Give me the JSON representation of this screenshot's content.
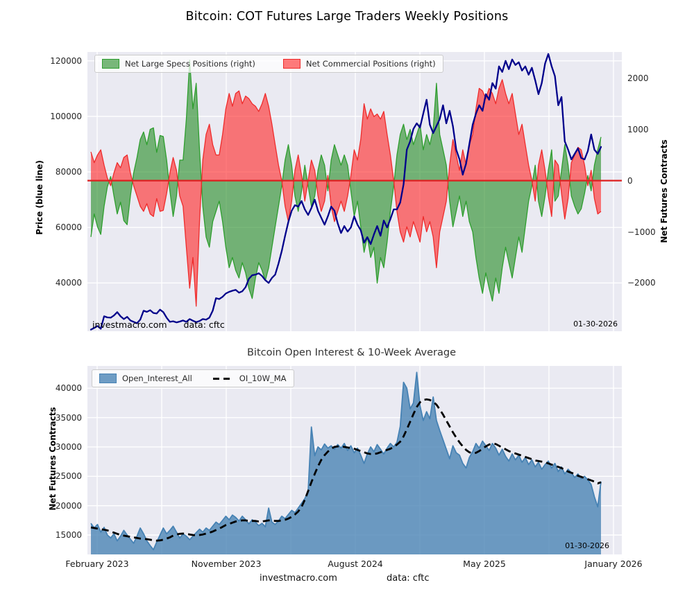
{
  "title": "Bitcoin: COT Futures Large Traders Weekly Positions",
  "footer": {
    "site": "investmacro.com",
    "source": "data: cftc"
  },
  "colors": {
    "plot_background": "#eaeaf2",
    "grid": "#ffffff",
    "specs_fill": "rgba(34,139,34,0.6)",
    "specs_line": "#2e9e2e",
    "commercials_fill": "rgba(255,35,35,0.6)",
    "commercials_line": "#ee2b2b",
    "zero_line": "#dd2020",
    "price_line": "#00008b",
    "oi_fill": "rgba(70,130,180,0.78)",
    "oi_line": "#4682b4",
    "ma_line": "#000000"
  },
  "chart_data": [
    {
      "type": "area+line",
      "ylabel_left": "Price (blue line)",
      "ylabel_right": "Net Futures Contracts",
      "ytick_labels_left": [
        "40000",
        "60000",
        "80000",
        "100000",
        "120000"
      ],
      "ytick_values_left": [
        40000,
        60000,
        80000,
        100000,
        120000
      ],
      "ytick_labels_right": [
        "−2000",
        "−1000",
        "0",
        "1000",
        "2000"
      ],
      "ytick_values_right": [
        -2000,
        -1000,
        0,
        1000,
        2000
      ],
      "ylim_left": [
        22600,
        123200
      ],
      "ylim_right": [
        -2940,
        2510
      ],
      "grid": true,
      "legend_position": "upper left",
      "legend": [
        {
          "label": "Net Large Specs Positions (right)",
          "series": "specs"
        },
        {
          "label": "Net Commercial Positions (right)",
          "series": "commercials"
        }
      ],
      "annotations": {
        "site": "investmacro.com",
        "source": "data: cftc",
        "date": "01-30-2026"
      },
      "x_range_note": "weekly, February 2023 to 01-30-2026",
      "series": {
        "specs": [
          -1100,
          -650,
          -900,
          -1050,
          -500,
          -120,
          80,
          -300,
          -650,
          -420,
          -780,
          -860,
          -300,
          150,
          450,
          800,
          950,
          700,
          1000,
          1030,
          550,
          880,
          860,
          400,
          -200,
          -700,
          -300,
          400,
          400,
          1200,
          2350,
          1400,
          1900,
          600,
          -500,
          -1100,
          -1300,
          -800,
          -600,
          -400,
          -800,
          -1300,
          -1700,
          -1500,
          -1750,
          -1900,
          -1600,
          -1800,
          -2100,
          -2300,
          -1900,
          -1600,
          -1750,
          -1950,
          -1700,
          -1300,
          -900,
          -500,
          -100,
          400,
          700,
          300,
          -300,
          -600,
          -200,
          300,
          -100,
          -500,
          -300,
          200,
          500,
          300,
          -200,
          400,
          700,
          500,
          300,
          500,
          300,
          -200,
          -700,
          -400,
          -900,
          -1400,
          -1100,
          -1500,
          -1300,
          -2000,
          -1500,
          -1700,
          -1200,
          -600,
          -100,
          500,
          900,
          1100,
          800,
          1000,
          700,
          900,
          1100,
          600,
          900,
          700,
          1000,
          1900,
          900,
          600,
          300,
          -400,
          -900,
          -600,
          -300,
          -700,
          -400,
          -800,
          -1000,
          -1500,
          -1900,
          -2200,
          -1800,
          -2100,
          -2350,
          -1900,
          -2200,
          -1700,
          -1300,
          -1600,
          -1900,
          -1500,
          -1100,
          -1400,
          -900,
          -400,
          -100,
          300,
          -400,
          -700,
          -300,
          200,
          600,
          -400,
          -300,
          200,
          700,
          300,
          -300,
          -500,
          -650,
          -550,
          -250,
          100,
          -200,
          300,
          600,
          850
        ],
        "commercials": [
          560,
          350,
          500,
          600,
          300,
          50,
          -100,
          150,
          350,
          250,
          450,
          500,
          150,
          -100,
          -300,
          -500,
          -600,
          -450,
          -650,
          -700,
          -350,
          -600,
          -580,
          -250,
          150,
          450,
          200,
          -300,
          -500,
          -1300,
          -2100,
          -1500,
          -2450,
          -800,
          400,
          900,
          1100,
          700,
          500,
          500,
          900,
          1400,
          1700,
          1450,
          1700,
          1750,
          1500,
          1650,
          1600,
          1500,
          1450,
          1350,
          1500,
          1700,
          1450,
          1100,
          700,
          300,
          0,
          -500,
          -800,
          -400,
          200,
          500,
          100,
          -400,
          0,
          400,
          200,
          -300,
          -600,
          -400,
          100,
          -500,
          -800,
          -600,
          -400,
          -600,
          -300,
          100,
          600,
          400,
          800,
          1500,
          1200,
          1400,
          1250,
          1300,
          1200,
          1350,
          900,
          500,
          0,
          -600,
          -1000,
          -1200,
          -900,
          -1100,
          -800,
          -1000,
          -1200,
          -700,
          -1000,
          -800,
          -1100,
          -1700,
          -1000,
          -700,
          -400,
          300,
          800,
          500,
          200,
          600,
          300,
          700,
          900,
          1400,
          1800,
          1750,
          1600,
          1800,
          1700,
          1500,
          1800,
          1970,
          1700,
          1500,
          1700,
          1300,
          900,
          1100,
          700,
          300,
          0,
          -400,
          300,
          600,
          200,
          -300,
          -700,
          400,
          300,
          -250,
          -750,
          -350,
          350,
          500,
          650,
          600,
          300,
          -100,
          200,
          -350,
          -650,
          -600
        ],
        "price": [
          23200,
          23800,
          24500,
          23500,
          28000,
          27600,
          27500,
          28300,
          29500,
          28000,
          27000,
          27800,
          26500,
          26000,
          25500,
          26800,
          30000,
          29600,
          30200,
          29200,
          29000,
          30400,
          29500,
          27500,
          26000,
          26200,
          25800,
          26100,
          26500,
          26000,
          27000,
          26400,
          25900,
          26300,
          27000,
          26800,
          27500,
          30000,
          34500,
          34200,
          35000,
          36200,
          36800,
          37200,
          37500,
          36500,
          37000,
          38500,
          41500,
          42800,
          43000,
          43500,
          42500,
          41000,
          40000,
          41800,
          43000,
          47000,
          51500,
          57000,
          62000,
          66000,
          68000,
          67500,
          69500,
          66500,
          64500,
          67000,
          70000,
          66000,
          63500,
          61000,
          64000,
          67500,
          66000,
          61500,
          58000,
          60500,
          58500,
          60000,
          64000,
          61000,
          59000,
          54500,
          56500,
          54000,
          57500,
          60500,
          57000,
          62500,
          60000,
          63000,
          66500,
          66500,
          69000,
          75500,
          88000,
          91000,
          95500,
          97500,
          96000,
          101000,
          106000,
          97000,
          94000,
          96500,
          99000,
          104000,
          97500,
          102000,
          96500,
          88000,
          84500,
          79000,
          83000,
          90000,
          97000,
          101000,
          104000,
          102000,
          108000,
          106000,
          112000,
          110000,
          118000,
          116000,
          120000,
          117000,
          120500,
          118500,
          119500,
          116500,
          118000,
          115000,
          117500,
          113000,
          108000,
          112000,
          119000,
          122500,
          118000,
          114500,
          104000,
          107000,
          91000,
          88000,
          84500,
          86500,
          88500,
          85000,
          84500,
          87500,
          93500,
          88000,
          86500,
          89000
        ]
      }
    },
    {
      "type": "area+line",
      "title": "Bitcoin Open Interest & 10-Week Average",
      "ylabel": "Net Futures Contracts",
      "ytick_labels": [
        "15000",
        "20000",
        "25000",
        "30000",
        "35000",
        "40000"
      ],
      "ytick_values": [
        15000,
        20000,
        25000,
        30000,
        35000,
        40000
      ],
      "ylim": [
        11700,
        43800
      ],
      "grid": true,
      "legend_position": "upper left",
      "xtick_labels": [
        "February 2023",
        "November 2023",
        "August 2024",
        "May 2025",
        "January 2026"
      ],
      "legend": [
        {
          "label": "Open_Interest_All",
          "series": "open_interest"
        },
        {
          "label": "OI_10W_MA",
          "series": "ma_10w"
        }
      ],
      "annotations": {
        "date": "01-30-2026"
      },
      "series": {
        "open_interest": [
          17000,
          16200,
          16800,
          15500,
          16300,
          15000,
          14500,
          15200,
          14000,
          14800,
          15800,
          15000,
          14300,
          13600,
          14800,
          16200,
          15200,
          14000,
          13200,
          12500,
          13800,
          15000,
          16200,
          15200,
          15800,
          16500,
          15500,
          14500,
          15200,
          14800,
          14200,
          14800,
          15400,
          16000,
          15500,
          16200,
          15800,
          16500,
          17200,
          16800,
          17500,
          18200,
          17600,
          18400,
          18000,
          17400,
          18200,
          17600,
          16900,
          17600,
          17200,
          16600,
          17000,
          16400,
          19600,
          17200,
          16800,
          17400,
          18200,
          17800,
          18500,
          19200,
          18800,
          19600,
          20400,
          21200,
          22400,
          33400,
          28500,
          30000,
          29500,
          30500,
          29800,
          30200,
          29600,
          30400,
          29800,
          30600,
          29400,
          30200,
          29000,
          29800,
          28600,
          27200,
          28800,
          30000,
          29200,
          30400,
          29600,
          28800,
          29800,
          30600,
          30000,
          30800,
          33500,
          41000,
          40000,
          36500,
          37500,
          42700,
          37000,
          34500,
          36000,
          34800,
          38500,
          34500,
          32800,
          31200,
          29600,
          28000,
          30200,
          29000,
          28600,
          27200,
          26400,
          28200,
          29200,
          30600,
          29800,
          31000,
          30200,
          29400,
          30600,
          29800,
          28600,
          29600,
          28400,
          27600,
          28800,
          27800,
          28600,
          27400,
          28200,
          27000,
          27800,
          26600,
          27400,
          26200,
          27000,
          27600,
          26400,
          27200,
          25800,
          26600,
          25400,
          26200,
          25600,
          24800,
          25400,
          24600,
          25000,
          24400,
          23600,
          21500,
          19800,
          24100
        ],
        "ma_10w": [
          16300,
          16200,
          16100,
          16000,
          15900,
          15800,
          15600,
          15400,
          15200,
          15000,
          14900,
          14800,
          14700,
          14600,
          14500,
          14400,
          14350,
          14300,
          14200,
          14100,
          14050,
          14100,
          14200,
          14400,
          14600,
          14900,
          15100,
          15200,
          15250,
          15200,
          15100,
          15000,
          14950,
          15000,
          15100,
          15250,
          15400,
          15600,
          15850,
          16100,
          16400,
          16700,
          16900,
          17100,
          17300,
          17400,
          17500,
          17500,
          17400,
          17400,
          17400,
          17300,
          17300,
          17400,
          17500,
          17500,
          17400,
          17400,
          17500,
          17600,
          17800,
          18100,
          18500,
          19000,
          19800,
          21000,
          22500,
          24000,
          25400,
          26700,
          27800,
          28600,
          29200,
          29700,
          30000,
          30100,
          30100,
          30000,
          29900,
          29800,
          29700,
          29500,
          29300,
          29100,
          28900,
          28800,
          28800,
          28900,
          29100,
          29300,
          29500,
          29700,
          30000,
          30400,
          30900,
          31800,
          33000,
          34300,
          35600,
          36800,
          37600,
          38000,
          38100,
          38000,
          37700,
          37200,
          36400,
          35500,
          34500,
          33500,
          32500,
          31600,
          30800,
          30100,
          29500,
          29100,
          28900,
          29000,
          29300,
          29700,
          30100,
          30400,
          30600,
          30500,
          30200,
          29900,
          29600,
          29300,
          29100,
          28900,
          28700,
          28500,
          28300,
          28100,
          27900,
          27700,
          27600,
          27500,
          27400,
          27200,
          27000,
          26800,
          26600,
          26400,
          26100,
          25800,
          25600,
          25400,
          25100,
          24900,
          24700,
          24500,
          24300,
          24100,
          23800,
          24000
        ]
      }
    }
  ]
}
